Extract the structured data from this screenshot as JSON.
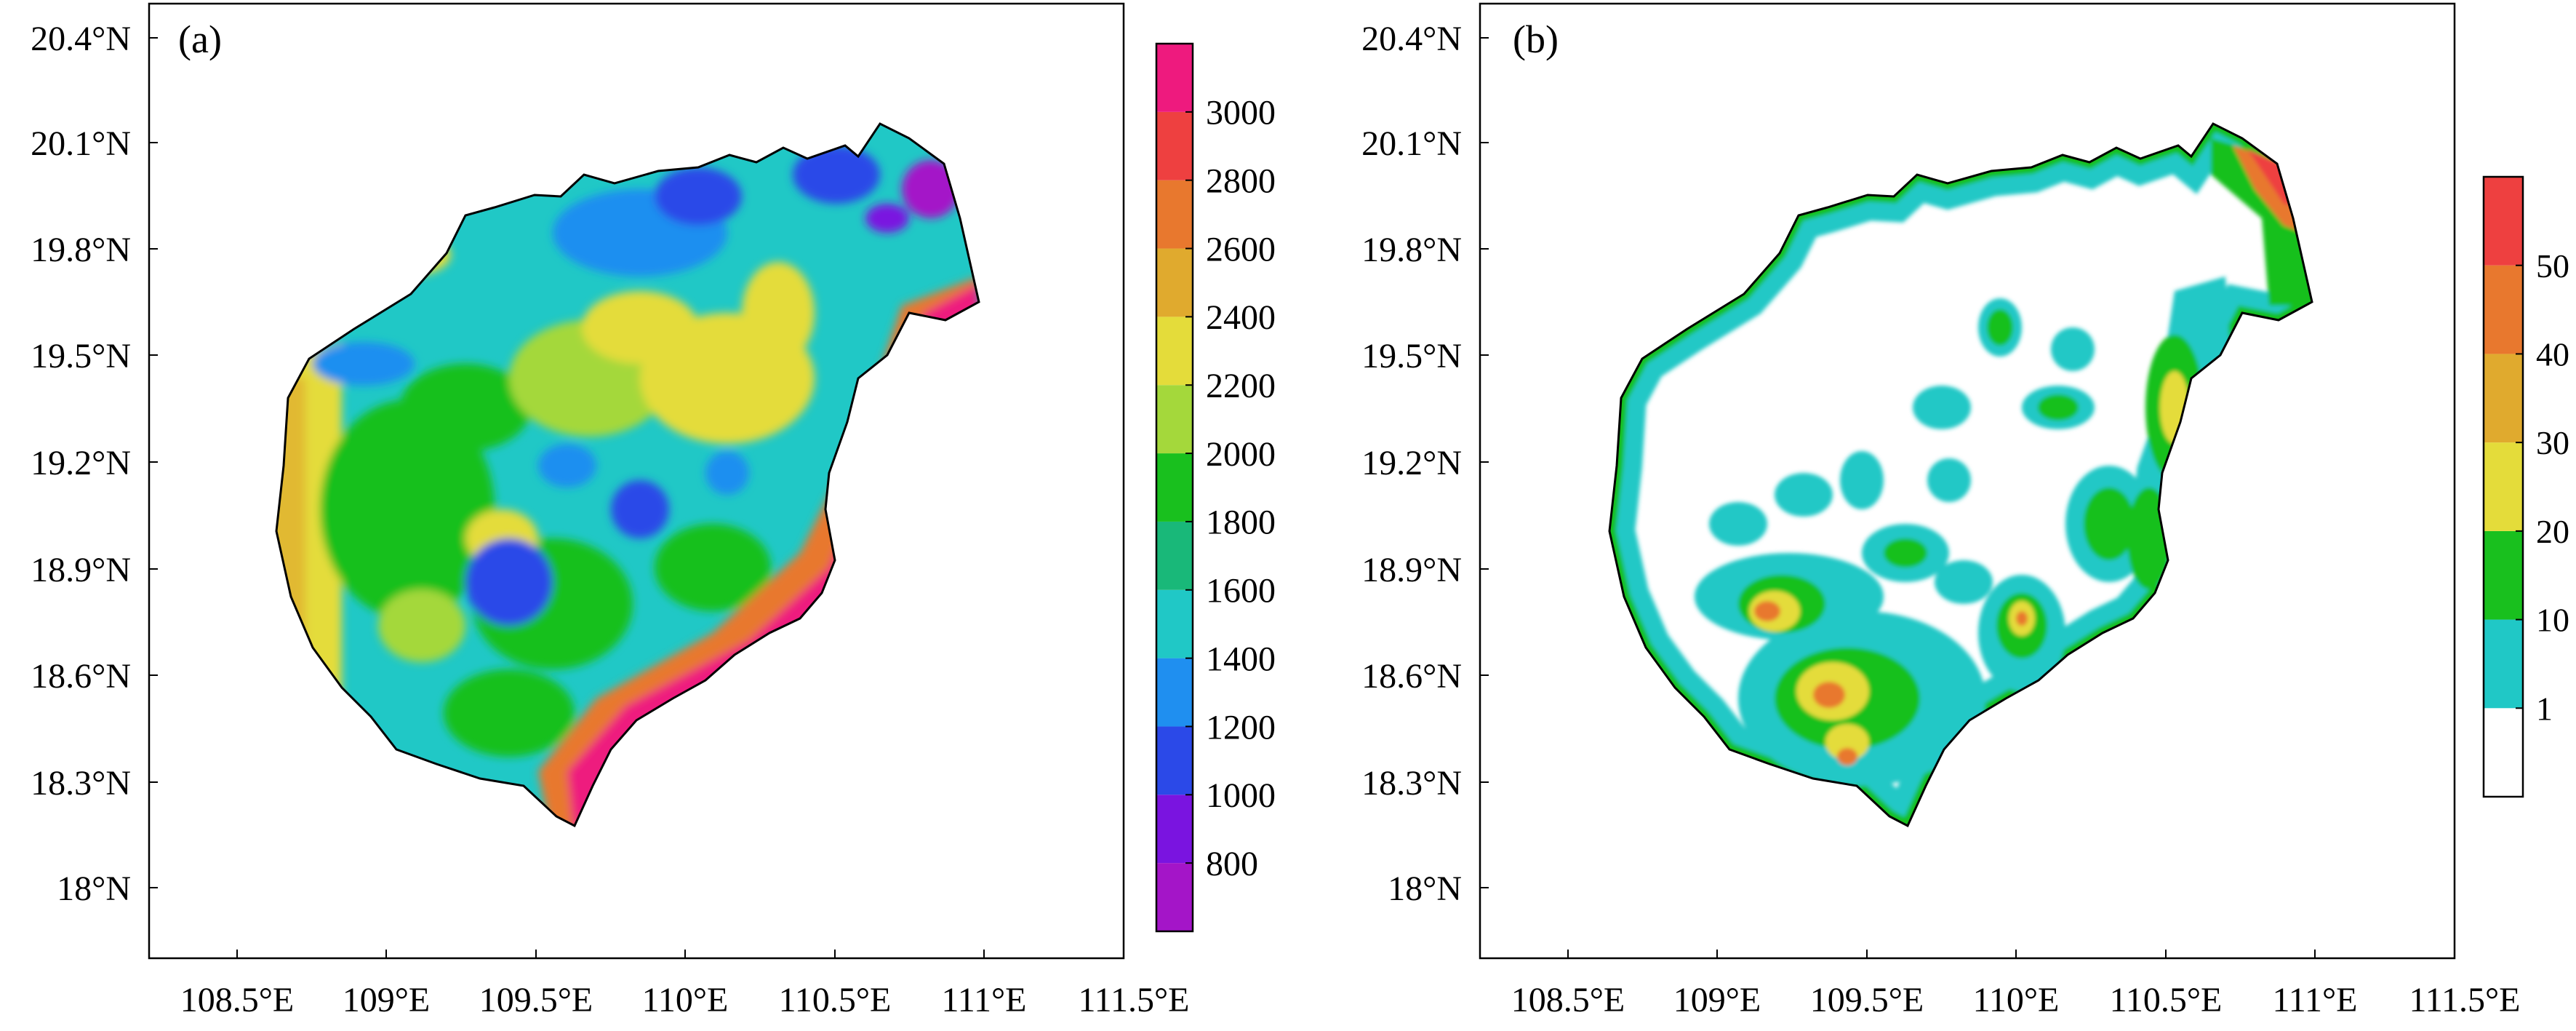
{
  "figure": {
    "panels": [
      {
        "label": "(a)",
        "x_ticks": [
          "108.5°E",
          "109°E",
          "109.5°E",
          "110°E",
          "110.5°E",
          "111°E",
          "111.5°E"
        ],
        "y_ticks": [
          "18°N",
          "18.3°N",
          "18.6°N",
          "18.9°N",
          "19.2°N",
          "19.5°N",
          "19.8°N",
          "20.1°N",
          "20.4°N"
        ],
        "colorbar": {
          "labels": [
            "800",
            "1000",
            "1200",
            "1400",
            "1600",
            "1800",
            "2000",
            "2200",
            "2400",
            "2600",
            "2800",
            "3000"
          ],
          "colors": [
            "#a415c8",
            "#7a14e0",
            "#2b49e8",
            "#1f8ff0",
            "#20c8c6",
            "#19b879",
            "#19c01e",
            "#a4d83b",
            "#e4dc3a",
            "#e0aa2e",
            "#e8782e",
            "#ee4040",
            "#ee1a7e"
          ]
        },
        "map_colors": {
          "base": "#20c8c6",
          "coast_rim": "#ee1a7e",
          "coast_inner": "#e8782e",
          "yellow": "#e4dc3a",
          "lightgreen": "#a4d83b",
          "green": "#19c01e",
          "teal": "#19b879",
          "blue": "#1f8ff0",
          "darkblue": "#2b49e8",
          "purple": "#a415c8"
        }
      },
      {
        "label": "(b)",
        "x_ticks": [
          "108.5°E",
          "109°E",
          "109.5°E",
          "110°E",
          "110.5°E",
          "111°E",
          "111.5°E"
        ],
        "y_ticks": [
          "18°N",
          "18.3°N",
          "18.6°N",
          "18.9°N",
          "19.2°N",
          "19.5°N",
          "19.8°N",
          "20.1°N",
          "20.4°N"
        ],
        "colorbar": {
          "labels": [
            "1",
            "10",
            "20",
            "30",
            "40",
            "50"
          ],
          "colors": [
            "#ffffff",
            "#20c8c6",
            "#19c01e",
            "#e4dc3a",
            "#e0aa2e",
            "#e8782e",
            "#ee4040"
          ]
        },
        "map_colors": {
          "base": "#ffffff",
          "coast_rim": "#19c01e",
          "coast_band": "#20c8c6",
          "spot_outer": "#20c8c6",
          "spot_mid": "#19c01e",
          "spot_inner": "#e4dc3a",
          "spot_core": "#e8782e"
        }
      }
    ]
  }
}
